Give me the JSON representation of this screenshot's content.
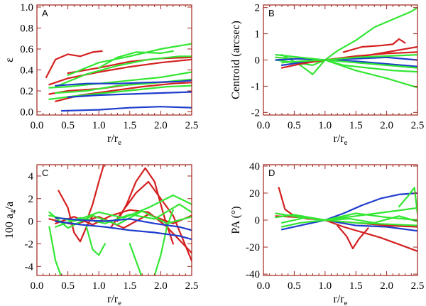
{
  "colors": {
    "frame": "#a0241c",
    "red": "#d42020",
    "green": "#33e633",
    "blue": "#1e3ccd"
  },
  "chart_data": [
    {
      "type": "line",
      "panel": "A",
      "xlabel_main": "r/r",
      "xlabel_sub": "e",
      "ylabel_main": "ε",
      "ylabel_sub": "",
      "xlim": [
        0.0,
        2.5
      ],
      "ylim": [
        -0.03,
        1.02
      ],
      "xticks": [
        "0.0",
        "0.5",
        "1.0",
        "1.5",
        "2.0",
        "2.5"
      ],
      "yticks": [
        "0.0",
        "0.2",
        "0.4",
        "0.6",
        "0.8",
        "1.0"
      ],
      "series": [
        {
          "name": "A-red-1",
          "color": "red",
          "x": [
            0.15,
            0.3,
            0.5,
            0.7,
            0.9,
            1.05
          ],
          "y": [
            0.33,
            0.5,
            0.55,
            0.53,
            0.57,
            0.58
          ]
        },
        {
          "name": "A-red-2",
          "color": "red",
          "x": [
            0.2,
            0.5,
            1.0,
            1.5,
            2.0,
            2.5
          ],
          "y": [
            0.26,
            0.32,
            0.38,
            0.43,
            0.47,
            0.5
          ]
        },
        {
          "name": "A-red-3",
          "color": "red",
          "x": [
            0.5,
            1.0,
            1.5,
            2.0,
            2.5
          ],
          "y": [
            0.37,
            0.42,
            0.48,
            0.51,
            0.52
          ]
        },
        {
          "name": "A-red-4",
          "color": "red",
          "x": [
            0.3,
            0.7,
            1.2,
            1.7,
            2.2,
            2.5
          ],
          "y": [
            0.1,
            0.16,
            0.2,
            0.24,
            0.27,
            0.28
          ]
        },
        {
          "name": "A-red-5",
          "color": "red",
          "x": [
            0.2,
            0.5,
            1.0,
            1.5,
            2.0,
            2.5
          ],
          "y": [
            0.17,
            0.2,
            0.22,
            0.26,
            0.28,
            0.3
          ]
        },
        {
          "name": "A-green-1",
          "color": "green",
          "x": [
            0.5,
            1.0,
            1.5,
            2.0,
            2.5
          ],
          "y": [
            0.35,
            0.47,
            0.53,
            0.6,
            0.65
          ]
        },
        {
          "name": "A-green-2",
          "color": "green",
          "x": [
            0.3,
            0.8,
            1.3,
            1.8,
            2.3,
            2.5
          ],
          "y": [
            0.24,
            0.36,
            0.44,
            0.5,
            0.53,
            0.53
          ]
        },
        {
          "name": "A-green-3",
          "color": "green",
          "x": [
            1.0,
            1.3,
            1.6,
            2.0,
            2.2
          ],
          "y": [
            0.42,
            0.52,
            0.57,
            0.56,
            0.58
          ]
        },
        {
          "name": "A-green-4",
          "color": "green",
          "x": [
            0.2,
            0.5,
            1.0,
            1.5,
            2.0,
            2.5
          ],
          "y": [
            0.23,
            0.24,
            0.27,
            0.3,
            0.33,
            0.38
          ]
        },
        {
          "name": "A-green-5",
          "color": "green",
          "x": [
            0.3,
            0.8,
            1.3,
            1.8,
            2.3,
            2.5
          ],
          "y": [
            0.18,
            0.2,
            0.25,
            0.27,
            0.3,
            0.31
          ]
        },
        {
          "name": "A-green-6",
          "color": "green",
          "x": [
            0.2,
            0.6,
            1.1,
            1.6,
            2.1,
            2.5
          ],
          "y": [
            0.12,
            0.15,
            0.18,
            0.21,
            0.24,
            0.25
          ]
        },
        {
          "name": "A-blue-1",
          "color": "blue",
          "x": [
            0.3,
            0.8,
            1.3,
            1.8,
            2.3,
            2.5
          ],
          "y": [
            0.25,
            0.27,
            0.27,
            0.28,
            0.29,
            0.3
          ]
        },
        {
          "name": "A-blue-2",
          "color": "blue",
          "x": [
            0.4,
            1.0,
            1.5,
            2.0,
            2.5
          ],
          "y": [
            0.01,
            0.02,
            0.04,
            0.05,
            0.04
          ]
        },
        {
          "name": "A-blue-3",
          "color": "blue",
          "x": [
            0.5,
            1.0,
            1.5,
            2.0,
            2.5
          ],
          "y": [
            0.14,
            0.16,
            0.17,
            0.18,
            0.19
          ]
        }
      ]
    },
    {
      "type": "line",
      "panel": "B",
      "xlabel_main": "r/r",
      "xlabel_sub": "e",
      "ylabel_main": "Centroid (arcsec)",
      "ylabel_sub": "",
      "xlim": [
        0.0,
        2.5
      ],
      "ylim": [
        -2.1,
        2.1
      ],
      "xticks": [
        "0.0",
        "0.5",
        "1.0",
        "1.5",
        "2.0",
        "2.5"
      ],
      "yticks": [
        "-2",
        "-1",
        "0",
        "1",
        "2"
      ],
      "series": [
        {
          "name": "B-green-1",
          "color": "green",
          "x": [
            0.2,
            0.5,
            0.8,
            1.0,
            1.2,
            1.5,
            1.8,
            2.1,
            2.4,
            2.5
          ],
          "y": [
            0.0,
            -0.1,
            -0.2,
            0.0,
            0.35,
            0.75,
            1.25,
            1.55,
            1.85,
            2.0
          ]
        },
        {
          "name": "B-red-1",
          "color": "red",
          "x": [
            1.3,
            1.6,
            1.9,
            2.1,
            2.2,
            2.3
          ],
          "y": [
            0.3,
            0.5,
            0.55,
            0.6,
            0.8,
            0.65
          ]
        },
        {
          "name": "B-red-2",
          "color": "red",
          "x": [
            0.2,
            0.5,
            1.0,
            1.5,
            2.0,
            2.5
          ],
          "y": [
            0.1,
            0.05,
            0.0,
            0.1,
            0.3,
            0.5
          ]
        },
        {
          "name": "B-green-2",
          "color": "green",
          "x": [
            0.2,
            0.5,
            1.0,
            1.5,
            2.0,
            2.5
          ],
          "y": [
            0.1,
            0.05,
            0.0,
            -0.4,
            -0.7,
            -1.05
          ]
        },
        {
          "name": "B-green-3",
          "color": "green",
          "x": [
            0.3,
            0.6,
            0.8,
            1.0,
            1.3,
            1.7,
            2.1,
            2.5
          ],
          "y": [
            0.2,
            -0.2,
            -0.55,
            0.0,
            -0.2,
            -0.3,
            -0.4,
            -0.45
          ]
        },
        {
          "name": "B-blue-1",
          "color": "blue",
          "x": [
            0.2,
            0.6,
            1.0,
            1.5,
            2.0,
            2.5
          ],
          "y": [
            0.0,
            0.05,
            0.0,
            -0.05,
            -0.15,
            -0.25
          ]
        },
        {
          "name": "B-blue-2",
          "color": "blue",
          "x": [
            0.3,
            0.6,
            1.0,
            1.5,
            2.0,
            2.5
          ],
          "y": [
            -0.2,
            -0.1,
            0.0,
            0.05,
            0.1,
            0.0
          ]
        },
        {
          "name": "B-red-3",
          "color": "red",
          "x": [
            0.3,
            0.6,
            1.0,
            1.5,
            2.0,
            2.5
          ],
          "y": [
            -0.3,
            -0.15,
            0.0,
            0.15,
            0.25,
            0.3
          ]
        },
        {
          "name": "B-green-4",
          "color": "green",
          "x": [
            0.2,
            0.6,
            1.0,
            1.5,
            2.0,
            2.5
          ],
          "y": [
            0.2,
            0.1,
            0.0,
            -0.1,
            -0.2,
            -0.3
          ]
        },
        {
          "name": "B-green-5",
          "color": "green",
          "x": [
            0.3,
            0.6,
            1.0,
            1.5,
            2.0,
            2.5
          ],
          "y": [
            -0.1,
            -0.05,
            0.0,
            0.1,
            0.15,
            0.2
          ]
        }
      ]
    },
    {
      "type": "line",
      "panel": "C",
      "xlabel_main": "r/r",
      "xlabel_sub": "e",
      "ylabel_main": "100 a",
      "ylabel_sub": "4",
      "ylabel_tail": "/a",
      "xlim": [
        0.0,
        2.5
      ],
      "ylim": [
        -4.8,
        5.0
      ],
      "xticks": [
        "0.0",
        "0.5",
        "1.0",
        "1.5",
        "2.0",
        "2.5"
      ],
      "yticks": [
        "-4",
        "-2",
        "0",
        "2",
        "4"
      ],
      "series": [
        {
          "name": "C-red-1",
          "color": "red",
          "x": [
            1.3,
            1.45,
            1.6,
            1.75,
            1.9,
            2.05,
            2.2
          ],
          "y": [
            0.0,
            1.5,
            3.5,
            4.7,
            3.5,
            0.5,
            -2.0
          ]
        },
        {
          "name": "C-red-2",
          "color": "red",
          "x": [
            1.2,
            1.4,
            1.6,
            1.8,
            2.0,
            2.2,
            2.5
          ],
          "y": [
            -0.5,
            1.0,
            2.5,
            3.5,
            2.0,
            0.5,
            -3.5
          ]
        },
        {
          "name": "C-red-3",
          "color": "red",
          "x": [
            0.8,
            0.9,
            1.0,
            1.08
          ],
          "y": [
            0.0,
            1.5,
            3.5,
            5.0
          ]
        },
        {
          "name": "C-red-4",
          "color": "red",
          "x": [
            0.35,
            0.5,
            0.6,
            0.7,
            0.8,
            0.9,
            1.0
          ],
          "y": [
            2.7,
            1.2,
            -1.0,
            -1.8,
            -0.5,
            0.5,
            0.3
          ]
        },
        {
          "name": "C-red-5",
          "color": "red",
          "x": [
            0.2,
            0.6,
            1.0,
            1.4,
            1.8,
            2.2,
            2.5
          ],
          "y": [
            0.2,
            -0.3,
            0.4,
            -0.6,
            0.6,
            -0.2,
            0.5
          ]
        },
        {
          "name": "C-red-6",
          "color": "red",
          "x": [
            0.3,
            0.6,
            0.9,
            1.2,
            1.5,
            1.8,
            2.1,
            2.5
          ],
          "y": [
            -0.2,
            0.4,
            -0.3,
            0.5,
            1.0,
            0.8,
            -0.5,
            -2.8
          ]
        },
        {
          "name": "C-green-1",
          "color": "green",
          "x": [
            0.2,
            0.3,
            0.4
          ],
          "y": [
            -0.5,
            -3.5,
            -5.0
          ]
        },
        {
          "name": "C-green-2",
          "color": "green",
          "x": [
            0.8,
            0.9,
            1.0,
            1.1
          ],
          "y": [
            -0.5,
            -2.5,
            -3.0,
            -2.0
          ]
        },
        {
          "name": "C-green-3",
          "color": "green",
          "x": [
            1.9,
            2.0,
            2.1,
            2.2
          ],
          "y": [
            -4.8,
            -3.0,
            -0.5,
            1.0
          ]
        },
        {
          "name": "C-green-4",
          "color": "green",
          "x": [
            1.5,
            1.6,
            1.7
          ],
          "y": [
            -2.0,
            -3.5,
            -5.0
          ]
        },
        {
          "name": "C-green-5",
          "color": "green",
          "x": [
            0.2,
            0.6,
            1.0,
            1.4,
            1.8,
            2.2,
            2.5
          ],
          "y": [
            0.5,
            0.0,
            0.8,
            0.3,
            1.2,
            2.3,
            1.5
          ]
        },
        {
          "name": "C-green-6",
          "color": "green",
          "x": [
            0.3,
            0.7,
            1.1,
            1.5,
            1.9,
            2.3,
            2.5
          ],
          "y": [
            -0.5,
            0.3,
            -0.2,
            0.6,
            0.2,
            1.5,
            0.8
          ]
        },
        {
          "name": "C-green-7",
          "color": "green",
          "x": [
            0.2,
            0.5,
            0.9,
            1.3,
            1.7,
            2.1,
            2.5
          ],
          "y": [
            0.8,
            -0.6,
            0.5,
            -0.3,
            0.9,
            -0.2,
            0.4
          ]
        },
        {
          "name": "C-blue-1",
          "color": "blue",
          "x": [
            0.3,
            0.7,
            1.1,
            1.5,
            1.9,
            2.3,
            2.5
          ],
          "y": [
            0.0,
            -0.3,
            -0.5,
            -0.8,
            -1.0,
            -1.3,
            -1.6
          ]
        },
        {
          "name": "C-blue-2",
          "color": "blue",
          "x": [
            0.3,
            0.7,
            1.1,
            1.5,
            1.9,
            2.3,
            2.5
          ],
          "y": [
            0.3,
            0.1,
            0.0,
            0.2,
            -0.2,
            -0.5,
            -0.8
          ]
        }
      ]
    },
    {
      "type": "line",
      "panel": "D",
      "xlabel_main": "r/r",
      "xlabel_sub": "e",
      "ylabel_main": "PA (°)",
      "ylabel_sub": "",
      "xlim": [
        0.0,
        2.5
      ],
      "ylim": [
        -41,
        41
      ],
      "xticks": [
        "0.0",
        "0.5",
        "1.0",
        "1.5",
        "2.0",
        "2.5"
      ],
      "yticks": [
        "-40",
        "-20",
        "0",
        "20",
        "40"
      ],
      "series": [
        {
          "name": "D-blue-1",
          "color": "blue",
          "x": [
            1.0,
            1.3,
            1.6,
            1.9,
            2.2,
            2.5
          ],
          "y": [
            0.0,
            5.0,
            11.0,
            16.0,
            19.0,
            20.0
          ]
        },
        {
          "name": "D-blue-2",
          "color": "blue",
          "x": [
            0.3,
            0.6,
            1.0,
            1.5,
            2.0,
            2.5
          ],
          "y": [
            -7.0,
            -4.0,
            0.0,
            -4.0,
            -5.0,
            -8.0
          ]
        },
        {
          "name": "D-red-1",
          "color": "red",
          "x": [
            0.25,
            0.35,
            0.5,
            0.7,
            0.9,
            1.0
          ],
          "y": [
            24.0,
            8.0,
            3.0,
            1.0,
            0.5,
            0.0
          ]
        },
        {
          "name": "D-red-2",
          "color": "red",
          "x": [
            1.0,
            1.3,
            1.6,
            1.9,
            2.2,
            2.5
          ],
          "y": [
            0.0,
            -5.0,
            -9.0,
            -13.0,
            -18.0,
            -23.0
          ]
        },
        {
          "name": "D-red-3",
          "color": "red",
          "x": [
            1.2,
            1.35,
            1.45,
            1.55,
            1.7
          ],
          "y": [
            -4.0,
            -12.0,
            -21.0,
            -14.0,
            -6.0
          ]
        },
        {
          "name": "D-red-4",
          "color": "red",
          "x": [
            0.2,
            0.6,
            1.0,
            1.5,
            2.0,
            2.5
          ],
          "y": [
            3.0,
            2.0,
            0.0,
            -2.0,
            -4.0,
            -5.0
          ]
        },
        {
          "name": "D-green-1",
          "color": "green",
          "x": [
            2.2,
            2.35,
            2.45,
            2.5
          ],
          "y": [
            10.0,
            18.0,
            24.0,
            5.0
          ]
        },
        {
          "name": "D-green-2",
          "color": "green",
          "x": [
            0.2,
            0.6,
            1.0,
            1.5,
            2.0,
            2.5
          ],
          "y": [
            5.0,
            2.0,
            0.0,
            3.0,
            6.0,
            9.0
          ]
        },
        {
          "name": "D-green-3",
          "color": "green",
          "x": [
            0.3,
            0.6,
            1.0,
            1.5,
            2.0,
            2.5
          ],
          "y": [
            -5.0,
            -2.0,
            0.0,
            -2.0,
            -3.0,
            -4.0
          ]
        },
        {
          "name": "D-green-4",
          "color": "green",
          "x": [
            0.2,
            0.5,
            1.0,
            1.5,
            2.0,
            2.5
          ],
          "y": [
            2.0,
            4.0,
            0.0,
            5.0,
            2.0,
            0.0
          ]
        },
        {
          "name": "D-green-5",
          "color": "green",
          "x": [
            0.3,
            0.7,
            1.0,
            1.4,
            1.8,
            2.2,
            2.5
          ],
          "y": [
            -2.0,
            2.0,
            0.0,
            1.0,
            -2.0,
            3.0,
            -1.0
          ]
        }
      ]
    }
  ]
}
